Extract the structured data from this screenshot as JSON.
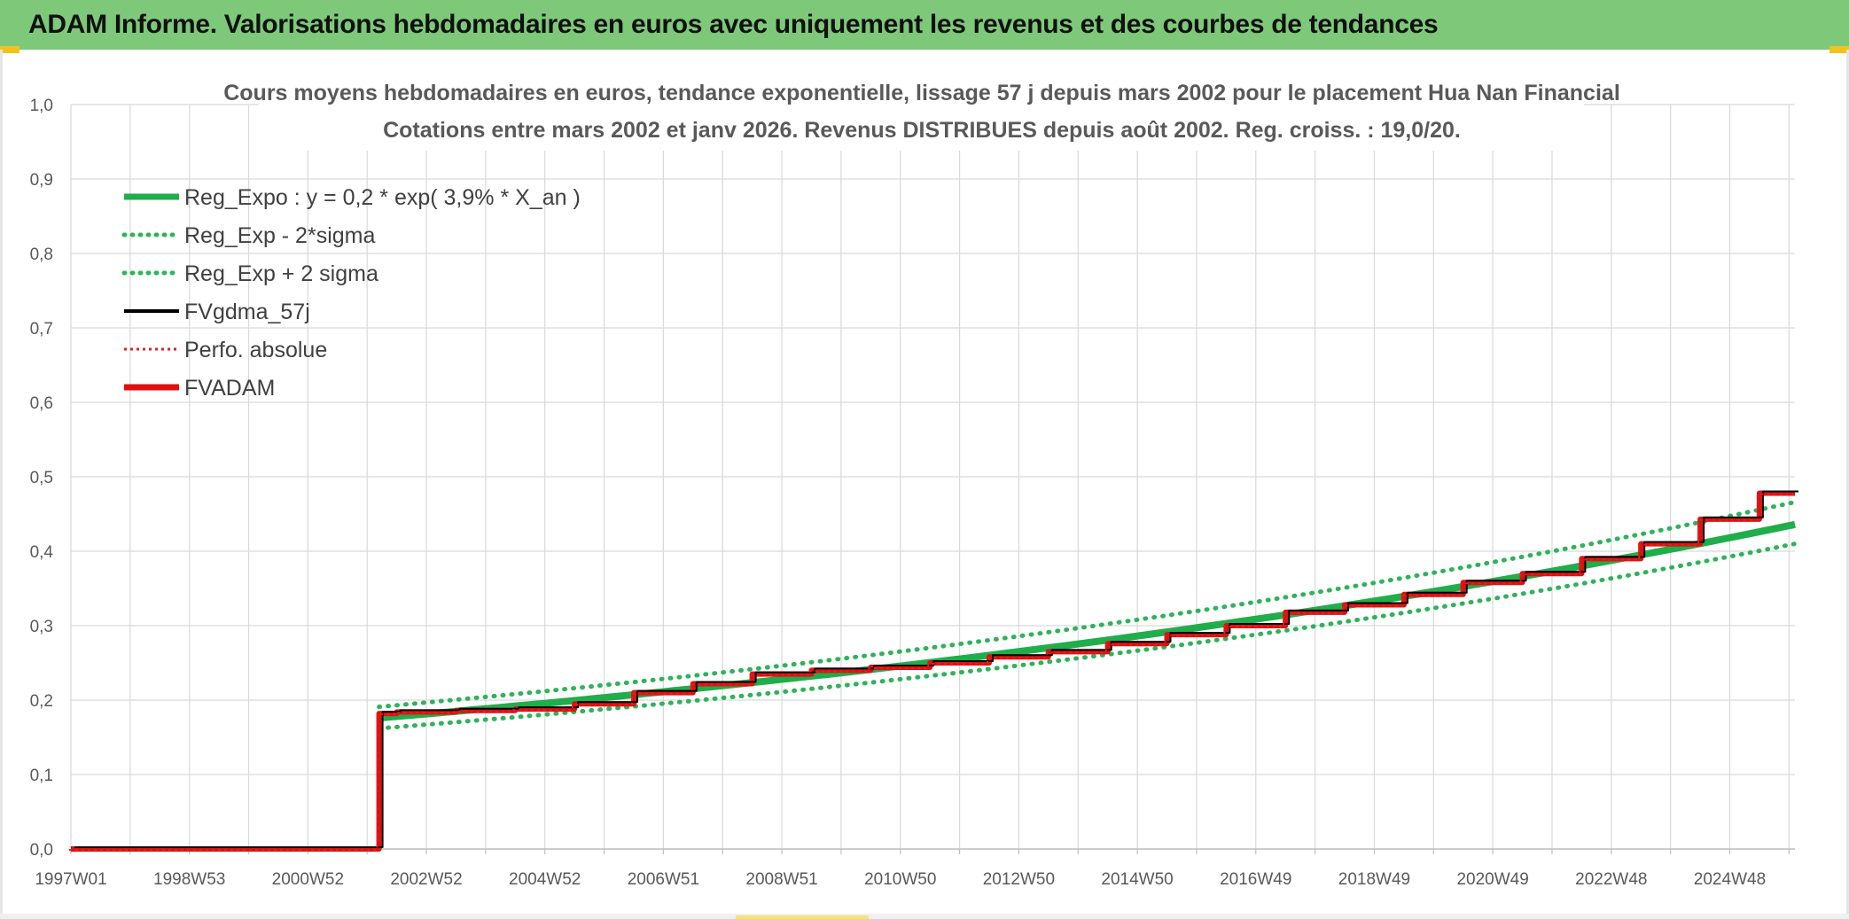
{
  "header": {
    "title": "ADAM Informe. Valorisations hebdomadaires en euros avec uniquement les revenus et des courbes de tendances"
  },
  "colors": {
    "header_bg": "#7ec87a",
    "reg_expo": "#1fae4b",
    "reg_band": "#2fb35a",
    "fvgdma": "#000000",
    "perfo": "#e02020",
    "fvadam": "#e01010",
    "grid": "#d9d9d9"
  },
  "chart_data": {
    "type": "line",
    "title_lines": [
      "Cours moyens hebdomadaires en euros, tendance exponentielle, lissage 57 j depuis mars 2002 pour le placement Hua Nan Financial",
      "Cotations entre mars 2002 et janv 2026. Revenus DISTRIBUES depuis août 2002. Reg. croiss. : 19,0/20."
    ],
    "x_axis": {
      "type": "time",
      "range": [
        1997.0,
        2026.1
      ],
      "tick_labels": [
        "1997W01",
        "1998W53",
        "2000W52",
        "2002W52",
        "2004W52",
        "2006W51",
        "2008W51",
        "2010W50",
        "2012W50",
        "2014W50",
        "2016W49",
        "2018W49",
        "2020W49",
        "2022W48",
        "2024W48"
      ]
    },
    "y_axis": {
      "range": [
        0,
        1.0
      ],
      "tick_labels": [
        "0,0",
        "0,1",
        "0,2",
        "0,3",
        "0,4",
        "0,5",
        "0,6",
        "0,7",
        "0,8",
        "0,9",
        "1,0"
      ]
    },
    "grid": true,
    "legend_position": "top-left",
    "legend": [
      {
        "label": "Reg_Expo : y = 0,2 * exp( 3,9% *  X_an )",
        "style": "solid-thick",
        "color": "#1fae4b"
      },
      {
        "label": "Reg_Exp - 2*sigma",
        "style": "dotted",
        "color": "#2fb35a"
      },
      {
        "label": "Reg_Exp + 2 sigma",
        "style": "dotted",
        "color": "#2fb35a"
      },
      {
        "label": "FVgdma_57j",
        "style": "solid",
        "color": "#000000"
      },
      {
        "label": "Perfo. absolue",
        "style": "dotted-thin",
        "color": "#e02020"
      },
      {
        "label": "FVADAM",
        "style": "solid-thick",
        "color": "#e01010"
      }
    ],
    "series": {
      "reg_expo": {
        "start": [
          2002.2,
          0.176
        ],
        "end": [
          2026.1,
          0.436
        ]
      },
      "reg_minus": {
        "start": [
          2002.2,
          0.162
        ],
        "end": [
          2026.1,
          0.41
        ]
      },
      "reg_plus": {
        "start": [
          2002.2,
          0.191
        ],
        "end": [
          2026.1,
          0.466
        ]
      },
      "fvadam_steps": [
        [
          1997.0,
          0.0
        ],
        [
          2002.2,
          0.0
        ],
        [
          2002.2,
          0.182
        ],
        [
          2002.5,
          0.184
        ],
        [
          2003.5,
          0.186
        ],
        [
          2004.5,
          0.188
        ],
        [
          2005.5,
          0.195
        ],
        [
          2006.5,
          0.21
        ],
        [
          2007.5,
          0.222
        ],
        [
          2008.5,
          0.235
        ],
        [
          2009.5,
          0.24
        ],
        [
          2010.5,
          0.244
        ],
        [
          2011.5,
          0.25
        ],
        [
          2012.5,
          0.258
        ],
        [
          2013.5,
          0.265
        ],
        [
          2014.5,
          0.276
        ],
        [
          2015.5,
          0.288
        ],
        [
          2016.5,
          0.3
        ],
        [
          2017.5,
          0.318
        ],
        [
          2018.5,
          0.328
        ],
        [
          2019.5,
          0.342
        ],
        [
          2020.5,
          0.358
        ],
        [
          2021.5,
          0.37
        ],
        [
          2022.5,
          0.39
        ],
        [
          2023.5,
          0.41
        ],
        [
          2024.5,
          0.443
        ],
        [
          2025.5,
          0.478
        ],
        [
          2026.1,
          0.478
        ]
      ]
    }
  }
}
